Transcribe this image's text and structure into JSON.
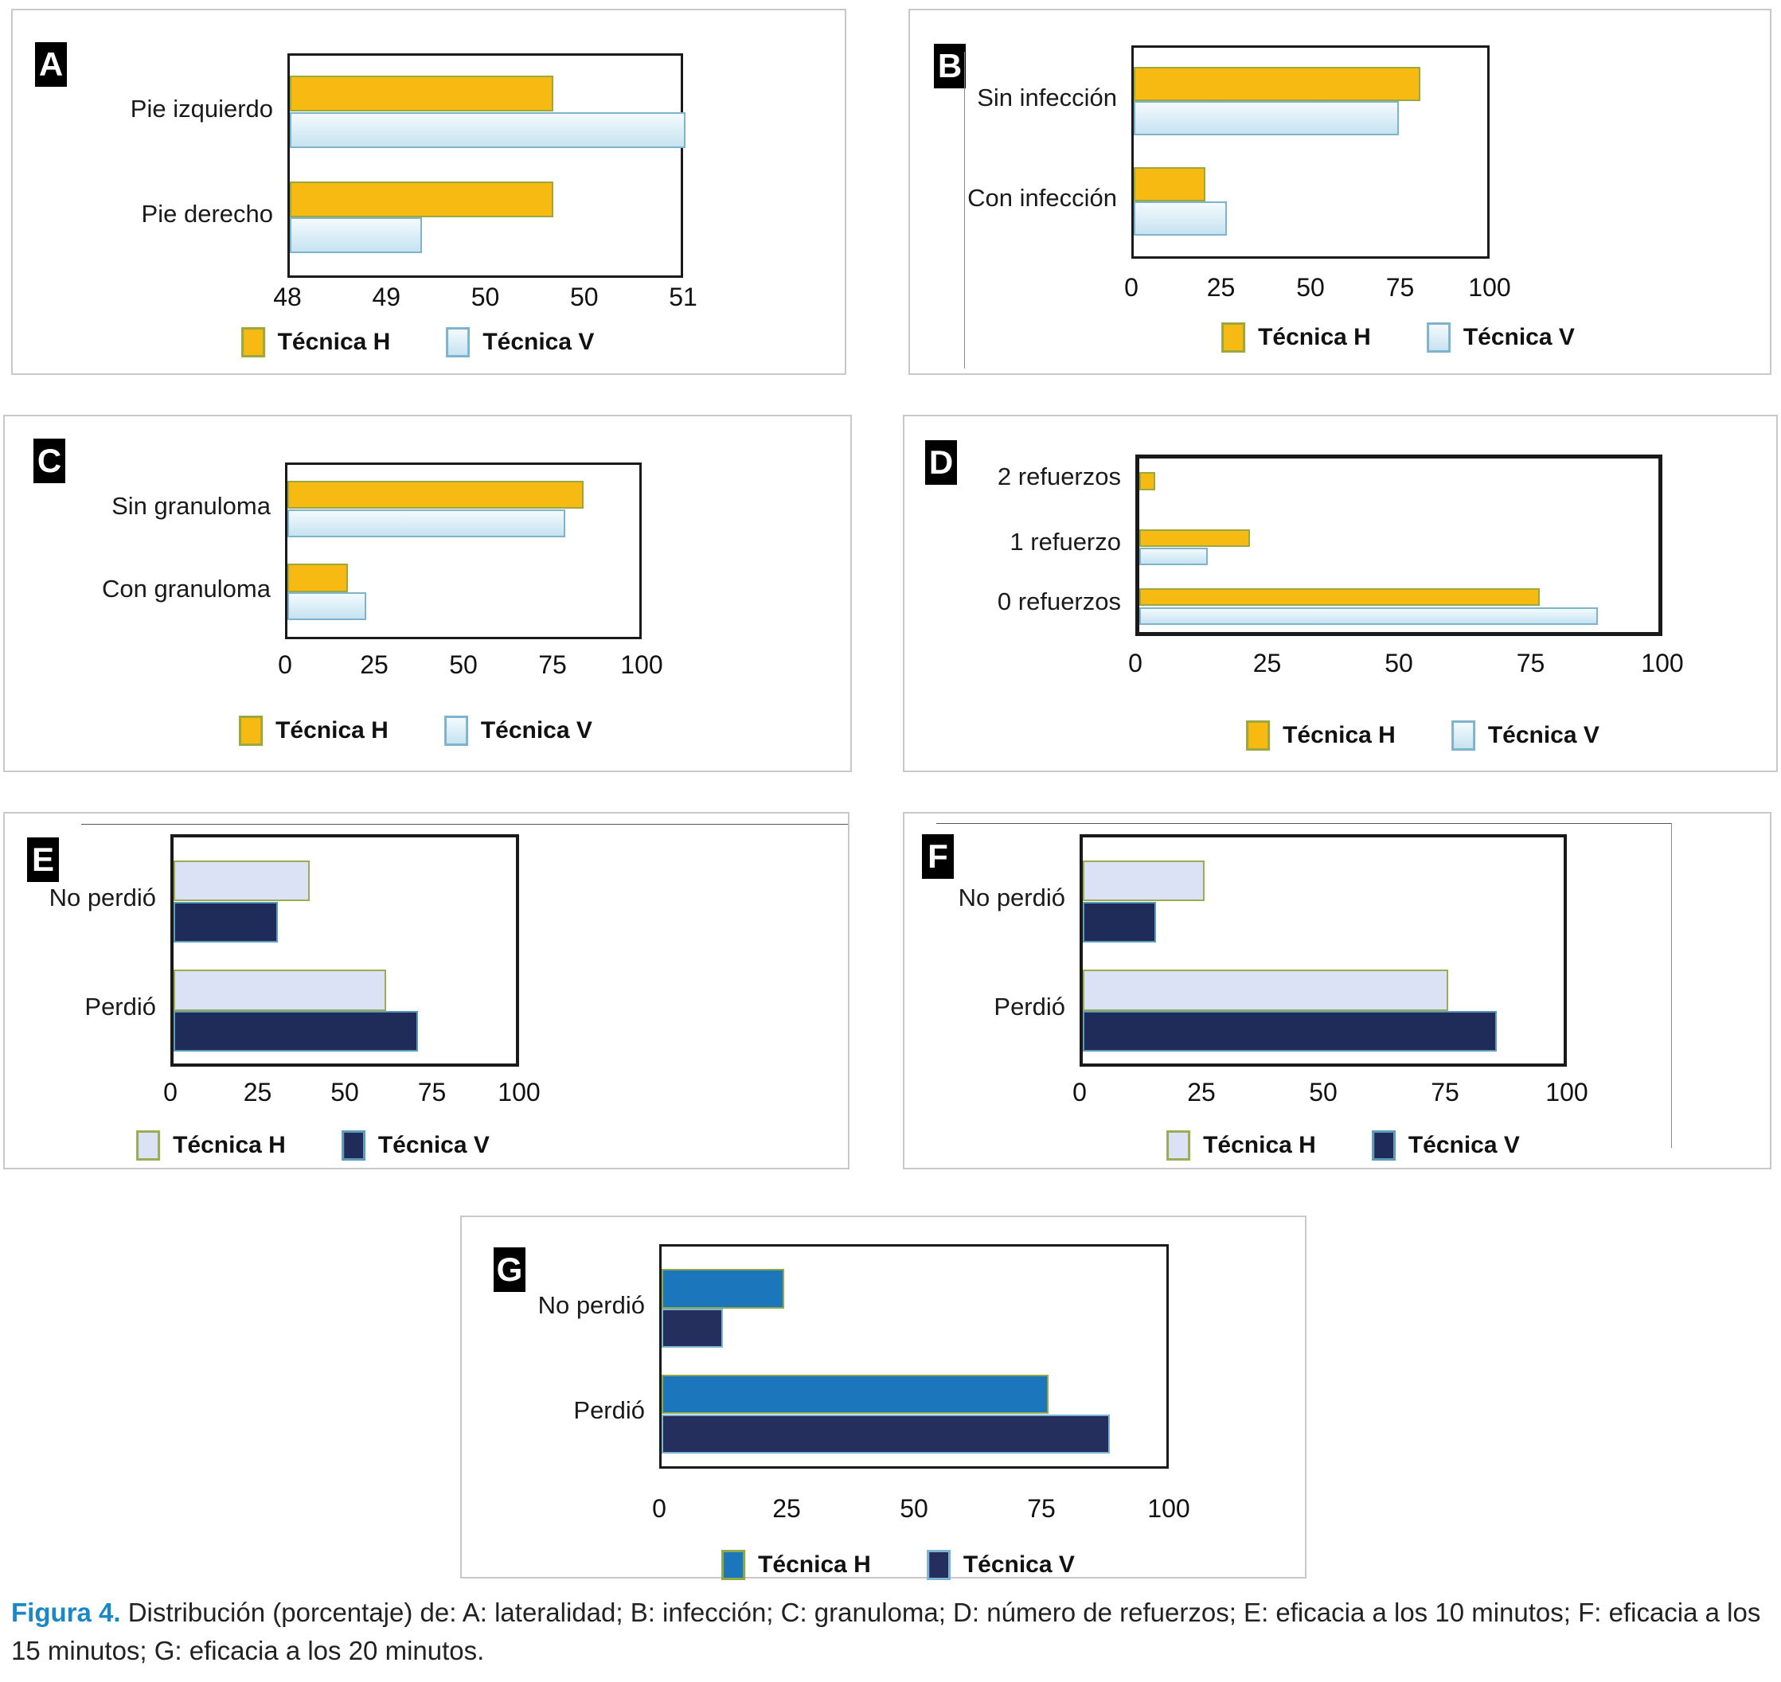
{
  "figure": {
    "caption": {
      "label": "Figura 4.",
      "text": "Distribución (porcentaje) de: A: lateralidad; B: infección; C: granuloma; D: número de refuerzos; E: eficacia a los 10 minutos; F: eficacia a los 15 minutos; G: eficacia a los 20 minutos.",
      "label_color": "#1b86c8"
    }
  },
  "chart_data": [
    {
      "type": "bar",
      "panel": "A",
      "variable": "lateralidad",
      "orientation": "horizontal",
      "categories": [
        "Pie izquierdo",
        "Pie derecho"
      ],
      "series": [
        {
          "name": "Técnica H",
          "values": [
            50,
            50
          ]
        },
        {
          "name": "Técnica V",
          "values": [
            51,
            49
          ]
        }
      ],
      "xlim": [
        48,
        51
      ],
      "tick_labels": [
        "48",
        "49",
        "50",
        "50",
        "51"
      ],
      "legend": [
        "Técnica H",
        "Técnica V"
      ],
      "legend_position": "bottom",
      "grid": false,
      "colors": {
        "h_fill": "#f6ba12",
        "h_fill_light": "#f6ba12",
        "h_border": "#9aa83e",
        "v_fill": "#c6e3f1",
        "v_fill_light": "#f3fafd",
        "v_border": "#7fb3cc"
      }
    },
    {
      "type": "bar",
      "panel": "B",
      "variable": "infección",
      "orientation": "horizontal",
      "categories": [
        "Sin infección",
        "Con infección"
      ],
      "series": [
        {
          "name": "Técnica H",
          "values": [
            80,
            20
          ]
        },
        {
          "name": "Técnica V",
          "values": [
            74,
            26
          ]
        }
      ],
      "xlim": [
        0,
        100
      ],
      "tick_labels": [
        "0",
        "25",
        "50",
        "75",
        "100"
      ],
      "legend": [
        "Técnica H",
        "Técnica V"
      ],
      "legend_position": "bottom",
      "grid": false,
      "colors": {
        "h_fill": "#f6ba12",
        "h_fill_light": "#f6ba12",
        "h_border": "#9aa83e",
        "v_fill": "#c6e3f1",
        "v_fill_light": "#f3fafd",
        "v_border": "#7fb3cc"
      }
    },
    {
      "type": "bar",
      "panel": "C",
      "variable": "granuloma",
      "orientation": "horizontal",
      "categories": [
        "Sin granuloma",
        "Con granuloma"
      ],
      "series": [
        {
          "name": "Técnica H",
          "values": [
            83,
            17
          ]
        },
        {
          "name": "Técnica V",
          "values": [
            78,
            22
          ]
        }
      ],
      "xlim": [
        0,
        100
      ],
      "tick_labels": [
        "0",
        "25",
        "50",
        "75",
        "100"
      ],
      "legend": [
        "Técnica H",
        "Técnica V"
      ],
      "legend_position": "bottom",
      "grid": false,
      "colors": {
        "h_fill": "#f6ba12",
        "h_fill_light": "#f6ba12",
        "h_border": "#9aa83e",
        "v_fill": "#c6e3f1",
        "v_fill_light": "#f3fafd",
        "v_border": "#7fb3cc"
      }
    },
    {
      "type": "bar",
      "panel": "D",
      "variable": "número de refuerzos",
      "orientation": "horizontal",
      "categories": [
        "2 refuerzos",
        "1 refuerzo",
        "0 refuerzos"
      ],
      "series": [
        {
          "name": "Técnica H",
          "values": [
            3,
            21,
            76
          ]
        },
        {
          "name": "Técnica V",
          "values": [
            0,
            13,
            87
          ]
        }
      ],
      "xlim": [
        0,
        100
      ],
      "tick_labels": [
        "0",
        "25",
        "50",
        "75",
        "100"
      ],
      "legend": [
        "Técnica H",
        "Técnica V"
      ],
      "legend_position": "bottom",
      "grid": false,
      "colors": {
        "h_fill": "#f6ba12",
        "h_fill_light": "#f6ba12",
        "h_border": "#9aa83e",
        "v_fill": "#c6e3f1",
        "v_fill_light": "#f3fafd",
        "v_border": "#7fb3cc"
      }
    },
    {
      "type": "bar",
      "panel": "E",
      "variable": "eficacia a los 10 minutos",
      "orientation": "horizontal",
      "categories": [
        "No perdió",
        "Perdió"
      ],
      "series": [
        {
          "name": "Técnica H",
          "values": [
            39,
            61
          ]
        },
        {
          "name": "Técnica V",
          "values": [
            30,
            70
          ]
        }
      ],
      "xlim": [
        0,
        100
      ],
      "tick_labels": [
        "0",
        "25",
        "50",
        "75",
        "100"
      ],
      "legend": [
        "Técnica H",
        "Técnica V"
      ],
      "legend_position": "bottom",
      "grid": false,
      "colors": {
        "h_fill": "#dbe2f5",
        "h_fill_light": "#dbe2f5",
        "h_border": "#9aad53",
        "v_fill": "#1f2b58",
        "v_fill_light": "#1f2b58",
        "v_border": "#5e9bbb"
      }
    },
    {
      "type": "bar",
      "panel": "F",
      "variable": "eficacia a los 15 minutos",
      "orientation": "horizontal",
      "categories": [
        "No perdió",
        "Perdió"
      ],
      "series": [
        {
          "name": "Técnica H",
          "values": [
            25,
            75
          ]
        },
        {
          "name": "Técnica V",
          "values": [
            15,
            85
          ]
        }
      ],
      "xlim": [
        0,
        100
      ],
      "tick_labels": [
        "0",
        "25",
        "50",
        "75",
        "100"
      ],
      "legend": [
        "Técnica H",
        "Técnica V"
      ],
      "legend_position": "bottom",
      "grid": false,
      "colors": {
        "h_fill": "#dbe2f5",
        "h_fill_light": "#dbe2f5",
        "h_border": "#9aad53",
        "v_fill": "#1f2b58",
        "v_fill_light": "#1f2b58",
        "v_border": "#5e9bbb"
      }
    },
    {
      "type": "bar",
      "panel": "G",
      "variable": "eficacia a los 20 minutos",
      "orientation": "horizontal",
      "categories": [
        "No perdió",
        "Perdió"
      ],
      "series": [
        {
          "name": "Técnica H",
          "values": [
            24,
            76
          ]
        },
        {
          "name": "Técnica V",
          "values": [
            12,
            88
          ]
        }
      ],
      "xlim": [
        0,
        100
      ],
      "tick_labels": [
        "0",
        "25",
        "50",
        "75",
        "100"
      ],
      "legend": [
        "Técnica H",
        "Técnica V"
      ],
      "legend_position": "bottom",
      "grid": false,
      "colors": {
        "h_fill": "#1c76bc",
        "h_fill_light": "#1c76bc",
        "h_border": "#8fa84a",
        "v_fill": "#242f5d",
        "v_fill_light": "#242f5d",
        "v_border": "#7fb3d4"
      }
    }
  ]
}
